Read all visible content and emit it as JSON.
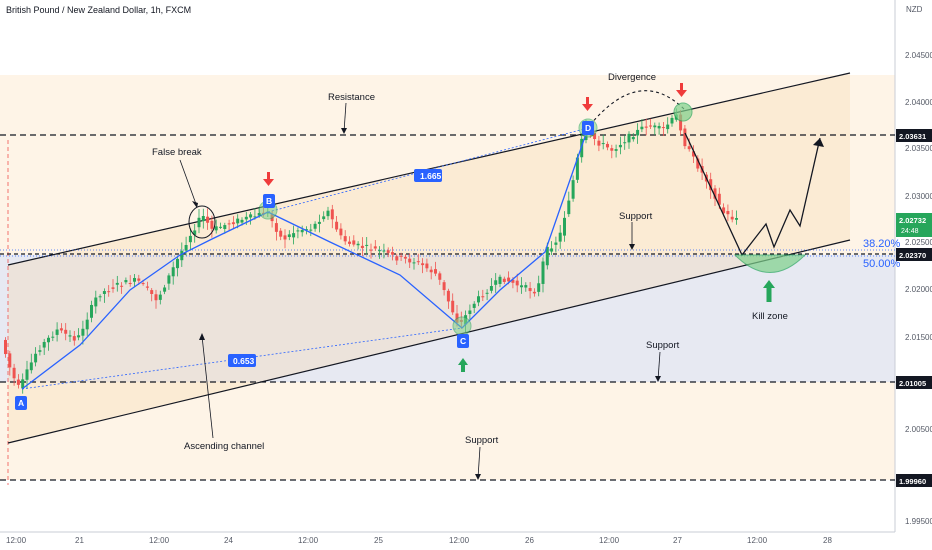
{
  "header": {
    "symbol_title": "British Pound / New Zealand Dollar, 1h, FXCM"
  },
  "axis": {
    "currency": "NZD",
    "y_ticks": [
      "2.04500",
      "2.04000",
      "2.03500",
      "2.03000",
      "2.02500",
      "2.02000",
      "2.01500",
      "2.01000",
      "2.00500",
      "1.99500"
    ],
    "x_ticks": [
      "12:00",
      "21",
      "12:00",
      "24",
      "12:00",
      "25",
      "12:00",
      "26",
      "12:00",
      "27",
      "12:00",
      "28"
    ]
  },
  "price_badges": {
    "level_upper": "2.03631",
    "last_price": "2.02732",
    "countdown": "24:48",
    "level_mid": "2.02370",
    "level_lower": "2.01005",
    "level_bottom": "1.99960"
  },
  "fib": {
    "f382": "38.20%",
    "f500": "50.00%"
  },
  "annotations": {
    "resistance": "Resistance",
    "false_break": "False break",
    "divergence": "Divergence",
    "support_upper": "Support",
    "support_mid": "Support",
    "support_lower": "Support",
    "ascending_channel": "Ascending channel",
    "kill_zone": "Kill zone"
  },
  "wave_points": {
    "a": "A",
    "b": "B",
    "c": "C",
    "d": "D"
  },
  "ratios": {
    "ratio_bd": "1.665",
    "ratio_ac": "0.653"
  },
  "chart_data": {
    "type": "candlestick",
    "instrument": "GBPNZD",
    "timeframe": "1h",
    "y_axis_ticks": [
      2.045,
      2.04,
      2.035,
      2.03,
      2.025,
      2.02,
      2.015,
      2.01,
      2.005,
      1.995
    ],
    "horizontal_levels": [
      2.03631,
      2.0237,
      2.01005,
      1.9996
    ],
    "last_price": 2.02732,
    "colors": {
      "up": "#26a65b",
      "down": "#ef5350",
      "pattern": "#2962ff",
      "channel": "#131722"
    }
  }
}
